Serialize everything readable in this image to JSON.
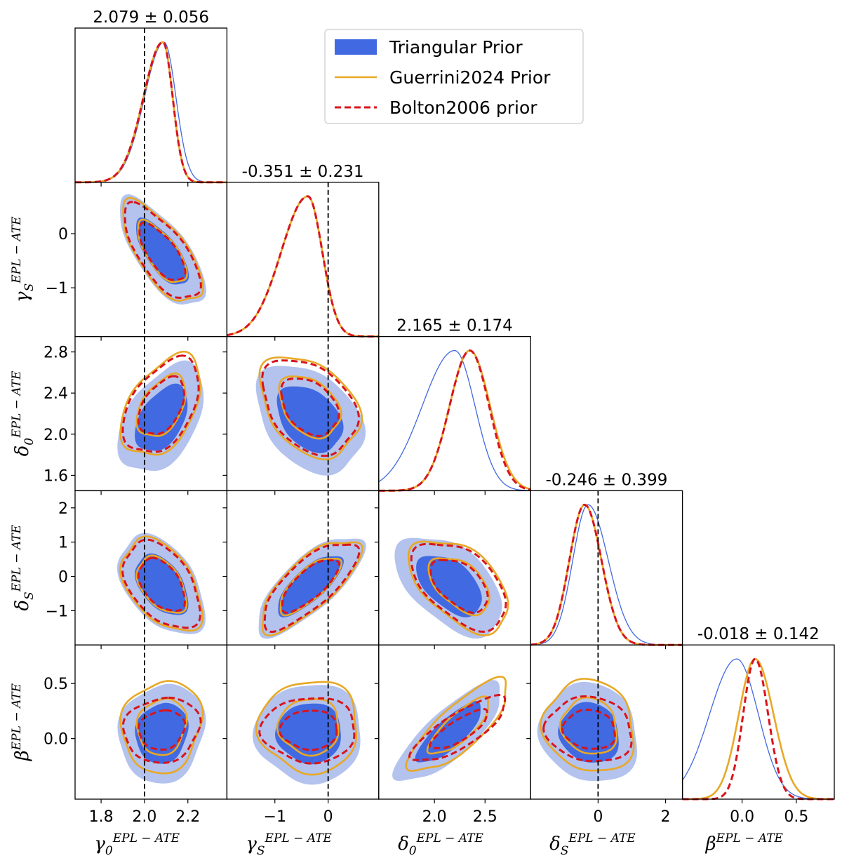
{
  "chart_data": {
    "type": "corner",
    "parameters": [
      {
        "key": "gamma0",
        "symbol": "γ",
        "sub": "0",
        "sup": "EPL − ATE",
        "truth": 2.0,
        "range": [
          1.68,
          2.38
        ],
        "ticks": [
          1.8,
          2.0,
          2.2
        ],
        "tick_labels": [
          "1.8",
          "2.0",
          "2.2"
        ],
        "mean": 2.08,
        "sd": 0.075
      },
      {
        "key": "gammaS",
        "symbol": "γ",
        "sub": "S",
        "sup": "EPL − ATE",
        "truth": 0.0,
        "range": [
          -1.9,
          0.95
        ],
        "ticks": [
          -1,
          0
        ],
        "tick_labels": [
          "−1",
          "0"
        ],
        "mean": -0.35,
        "sd": 0.38
      },
      {
        "key": "delta0",
        "symbol": "δ",
        "sub": "0",
        "sup": "EPL − ATE",
        "truth": null,
        "range": [
          1.45,
          2.95
        ],
        "ticks": [
          2.0,
          2.5
        ],
        "tick_labels": [
          "2.0",
          "2.5"
        ],
        "yticks": [
          1.6,
          2.0,
          2.4,
          2.8
        ],
        "ytick_labels": [
          "1.6",
          "2.0",
          "2.4",
          "2.8"
        ],
        "mean": 2.15,
        "sd": 0.2
      },
      {
        "key": "deltaS",
        "symbol": "δ",
        "sub": "S",
        "sup": "EPL − ATE",
        "truth": 0.0,
        "range": [
          -2.0,
          2.5
        ],
        "ticks": [
          0,
          2
        ],
        "tick_labels": [
          "0",
          "2"
        ],
        "yticks": [
          -1,
          0,
          1,
          2
        ],
        "ytick_labels": [
          "−1",
          "0",
          "1",
          "2"
        ],
        "mean": -0.25,
        "sd": 0.55
      },
      {
        "key": "beta",
        "symbol": "β",
        "sub": "",
        "sup": "EPL − ATE",
        "truth": null,
        "range": [
          -0.55,
          0.85
        ],
        "ticks": [
          0.0,
          0.5
        ],
        "tick_labels": [
          "0.0",
          "0.5"
        ],
        "yticks": [
          0.0,
          0.5
        ],
        "ytick_labels": [
          "0.0",
          "0.5"
        ],
        "mean": 0.05,
        "sd": 0.17
      }
    ],
    "titles": [
      "2.079 ± 0.056",
      "-0.351 ± 0.231",
      "2.165 ± 0.174",
      "-0.246 ± 0.399",
      "-0.018 ± 0.142"
    ],
    "series": [
      {
        "name": "Triangular Prior",
        "color": "#4169e1",
        "light_color": "#b3c3ee",
        "style": "filled"
      },
      {
        "name": "Guerrini2024 Prior",
        "color": "#e8a825",
        "style": "solid"
      },
      {
        "name": "Bolton2006 prior",
        "color": "#d9141c",
        "style": "dashed"
      }
    ],
    "marginals": [
      {
        "triangular": {
          "mu": 2.09,
          "sd_left": 0.09,
          "sd_right": 0.055
        },
        "guerrini": {
          "mu": 2.085,
          "sd_left": 0.09,
          "sd_right": 0.045
        },
        "bolton": {
          "mu": 2.085,
          "sd_left": 0.09,
          "sd_right": 0.045
        }
      },
      {
        "triangular": {
          "mu": -0.38,
          "sd_left": 0.5,
          "sd_right": 0.27
        },
        "guerrini": {
          "mu": -0.38,
          "sd_left": 0.5,
          "sd_right": 0.27
        },
        "bolton": {
          "mu": -0.38,
          "sd_left": 0.5,
          "sd_right": 0.27
        }
      },
      {
        "triangular": {
          "mu": 2.2,
          "sd_left": 0.32,
          "sd_right": 0.2
        },
        "guerrini": {
          "mu": 2.35,
          "sd_left": 0.2,
          "sd_right": 0.2
        },
        "bolton": {
          "mu": 2.35,
          "sd_left": 0.2,
          "sd_right": 0.19
        }
      },
      {
        "triangular": {
          "mu": -0.3,
          "sd_left": 0.45,
          "sd_right": 0.6
        },
        "guerrini": {
          "mu": -0.4,
          "sd_left": 0.45,
          "sd_right": 0.5
        },
        "bolton": {
          "mu": -0.4,
          "sd_left": 0.45,
          "sd_right": 0.5
        }
      },
      {
        "triangular": {
          "mu": -0.05,
          "sd_left": 0.25,
          "sd_right": 0.2
        },
        "guerrini": {
          "mu": 0.12,
          "sd_left": 0.15,
          "sd_right": 0.17
        },
        "bolton": {
          "mu": 0.12,
          "sd_left": 0.11,
          "sd_right": 0.12
        }
      }
    ],
    "correlations": [
      [
        0,
        0,
        0,
        0,
        0
      ],
      [
        -0.7,
        0,
        0,
        0,
        0
      ],
      [
        0.45,
        -0.35,
        0,
        0,
        0
      ],
      [
        -0.45,
        0.75,
        -0.5,
        0,
        0
      ],
      [
        0.1,
        0.0,
        0.8,
        -0.1,
        0
      ]
    ],
    "legend_position": "top-center"
  }
}
